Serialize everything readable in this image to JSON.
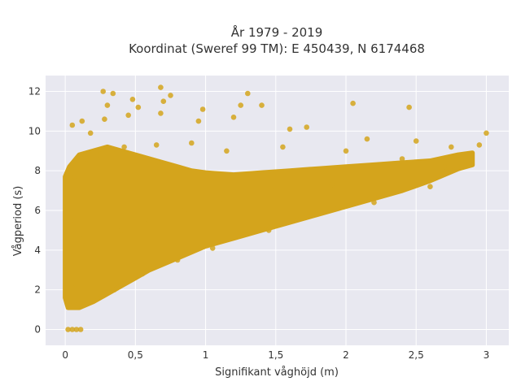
{
  "chart_data": {
    "type": "scatter",
    "title_line1": "År 1979 - 2019",
    "title_line2": "Koordinat (Sweref 99 TM): E 450439, N 6174468",
    "xlabel": "Signifikant våghöjd (m)",
    "ylabel": "Vågperiod (s)",
    "xlim": [
      -0.14,
      3.16
    ],
    "ylim": [
      -0.8,
      12.8
    ],
    "x_ticks": [
      0,
      0.5,
      1,
      1.5,
      2,
      2.5,
      3
    ],
    "x_tick_labels": [
      "0",
      "0,5",
      "1",
      "1,5",
      "2",
      "2,5",
      "3"
    ],
    "y_ticks": [
      0,
      2,
      4,
      6,
      8,
      10,
      12
    ],
    "y_tick_labels": [
      "0",
      "2",
      "4",
      "6",
      "8",
      "10",
      "12"
    ],
    "grid": true,
    "marker_color": "#D4A41C",
    "background_color": "#E8E8F0",
    "series": [
      {
        "points": [
          [
            0.02,
            0
          ],
          [
            0.05,
            0
          ],
          [
            0.08,
            0
          ],
          [
            0.11,
            0
          ],
          [
            0.03,
            1.2
          ],
          [
            0.05,
            2.1
          ],
          [
            0.06,
            3.5
          ],
          [
            0.04,
            5.5
          ],
          [
            0.07,
            7.7
          ],
          [
            0.05,
            10.3
          ],
          [
            0.1,
            1.3
          ],
          [
            0.12,
            4.8
          ],
          [
            0.15,
            8.6
          ],
          [
            0.12,
            10.5
          ],
          [
            0.18,
            9.9
          ],
          [
            0.2,
            1.6
          ],
          [
            0.22,
            4.2
          ],
          [
            0.25,
            8.8
          ],
          [
            0.28,
            10.6
          ],
          [
            0.3,
            11.3
          ],
          [
            0.27,
            12.0
          ],
          [
            0.34,
            11.9
          ],
          [
            0.35,
            2.0
          ],
          [
            0.4,
            5.0
          ],
          [
            0.42,
            9.2
          ],
          [
            0.45,
            10.8
          ],
          [
            0.48,
            11.6
          ],
          [
            0.52,
            11.2
          ],
          [
            0.55,
            2.8
          ],
          [
            0.6,
            5.5
          ],
          [
            0.65,
            9.3
          ],
          [
            0.68,
            10.9
          ],
          [
            0.7,
            11.5
          ],
          [
            0.68,
            12.2
          ],
          [
            0.75,
            11.8
          ],
          [
            0.8,
            3.5
          ],
          [
            0.85,
            6.0
          ],
          [
            0.9,
            9.4
          ],
          [
            0.95,
            10.5
          ],
          [
            0.98,
            11.1
          ],
          [
            1.05,
            4.1
          ],
          [
            1.1,
            6.4
          ],
          [
            1.15,
            9.0
          ],
          [
            1.2,
            10.7
          ],
          [
            1.25,
            11.3
          ],
          [
            1.3,
            11.9
          ],
          [
            1.4,
            11.3
          ],
          [
            1.45,
            5.0
          ],
          [
            1.5,
            7.0
          ],
          [
            1.55,
            9.2
          ],
          [
            1.6,
            10.1
          ],
          [
            1.72,
            10.2
          ],
          [
            1.8,
            5.9
          ],
          [
            1.9,
            7.3
          ],
          [
            2.0,
            9.0
          ],
          [
            2.05,
            11.4
          ],
          [
            2.15,
            9.6
          ],
          [
            2.2,
            6.4
          ],
          [
            2.3,
            7.6
          ],
          [
            2.4,
            8.6
          ],
          [
            2.45,
            11.2
          ],
          [
            2.5,
            9.5
          ],
          [
            2.6,
            7.2
          ],
          [
            2.7,
            8.2
          ],
          [
            2.75,
            9.2
          ],
          [
            2.85,
            8.5
          ],
          [
            2.95,
            9.3
          ],
          [
            3.0,
            9.9
          ]
        ]
      }
    ]
  }
}
